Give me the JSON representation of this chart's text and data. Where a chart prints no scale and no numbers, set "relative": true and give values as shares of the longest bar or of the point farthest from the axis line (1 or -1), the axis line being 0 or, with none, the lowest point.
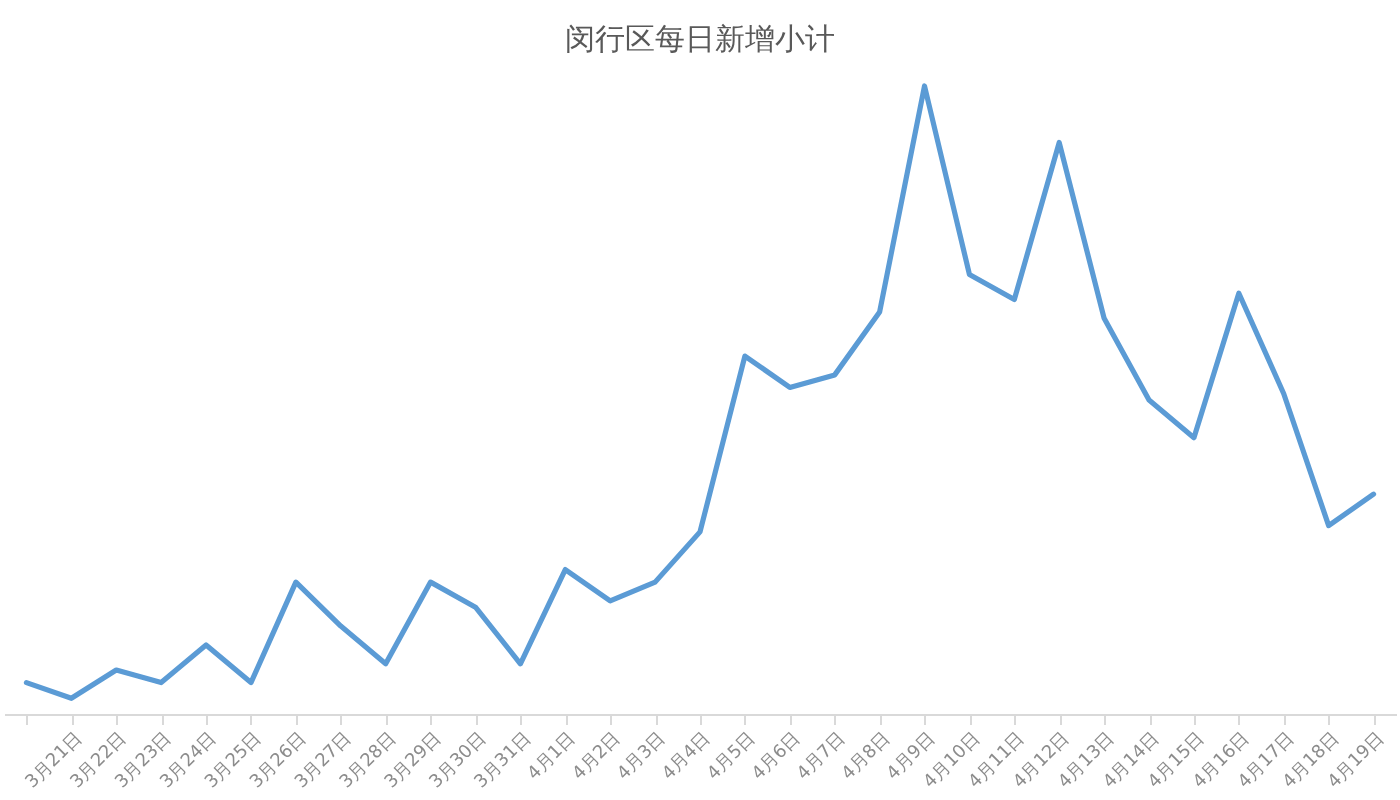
{
  "chart_data": {
    "type": "line",
    "title": "闵行区每日新增小计",
    "relative": true,
    "categories": [
      null,
      "3月21日",
      "3月22日",
      "3月23日",
      "3月24日",
      "3月25日",
      "3月26日",
      "3月27日",
      "3月28日",
      "3月29日",
      "3月30日",
      "3月31日",
      "4月1日",
      "4月2日",
      "4月3日",
      "4月4日",
      "4月5日",
      "4月6日",
      "4月7日",
      "4月8日",
      "4月9日",
      "4月10日",
      "4月11日",
      "4月12日",
      "4月13日",
      "4月14日",
      "4月15日",
      "4月16日",
      "4月17日",
      "4月18日",
      "4月19日"
    ],
    "series": [
      {
        "color": "#5b9bd5",
        "values": [
          0.05,
          0.025,
          0.07,
          0.05,
          0.11,
          0.05,
          0.21,
          0.14,
          0.08,
          0.21,
          0.17,
          0.08,
          0.23,
          0.18,
          0.21,
          0.29,
          0.57,
          0.52,
          0.54,
          0.64,
          1,
          0.7,
          0.66,
          0.91,
          0.63,
          0.5,
          0.44,
          0.67,
          0.51,
          0.3,
          0.35
        ]
      }
    ]
  }
}
